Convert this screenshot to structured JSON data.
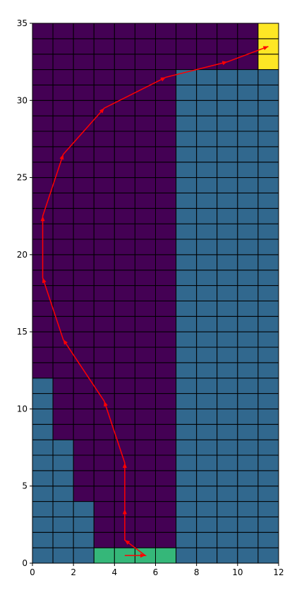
{
  "chart_data": {
    "type": "heatmap",
    "title": "",
    "xlabel": "",
    "ylabel": "",
    "xlim": [
      0,
      12
    ],
    "ylim": [
      0,
      35
    ],
    "xticks": [
      0,
      2,
      4,
      6,
      8,
      10,
      12
    ],
    "yticks": [
      0,
      5,
      10,
      15,
      20,
      25,
      30,
      35
    ],
    "grid": "cell borders",
    "colors": {
      "free": "#440154",
      "obstacle": "#31688e",
      "start": "#35b779",
      "goal": "#fde725",
      "path": "#ff0000",
      "cell_border": "#000000"
    },
    "regions": {
      "goal": {
        "x": [
          11,
          12
        ],
        "y": [
          32,
          35
        ]
      },
      "start": {
        "x": [
          3,
          7
        ],
        "y": [
          0,
          1
        ]
      },
      "obstacle_boundary": [
        {
          "x": [
            0,
            1
          ],
          "y_top": 12
        },
        {
          "x": [
            1,
            2
          ],
          "y_top": 8
        },
        {
          "x": [
            2,
            3
          ],
          "y_top": 4
        },
        {
          "x": [
            3,
            7
          ],
          "y_top": 0
        },
        {
          "x": [
            7,
            11
          ],
          "y_top": 32
        },
        {
          "x": [
            11,
            12
          ],
          "y_top": 32
        }
      ]
    },
    "path": [
      [
        4.5,
        0.5
      ],
      [
        5.5,
        0.5
      ],
      [
        4.5,
        1.5
      ],
      [
        4.5,
        3.5
      ],
      [
        4.5,
        6.5
      ],
      [
        3.5,
        10.5
      ],
      [
        1.5,
        14.5
      ],
      [
        0.5,
        18.5
      ],
      [
        0.5,
        22.5
      ],
      [
        1.5,
        26.5
      ],
      [
        3.5,
        29.5
      ],
      [
        6.5,
        31.5
      ],
      [
        9.5,
        32.5
      ],
      [
        11.5,
        33.5
      ]
    ]
  }
}
